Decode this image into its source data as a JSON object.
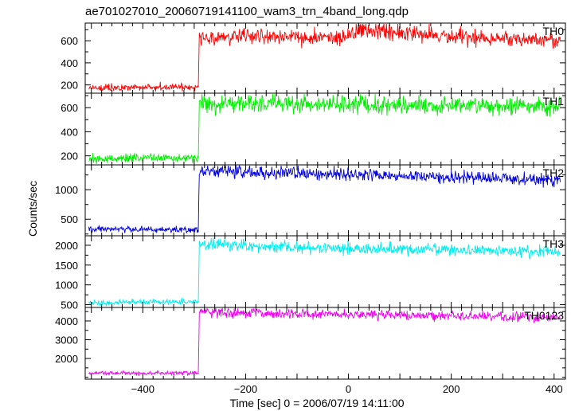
{
  "chart_data": {
    "type": "line",
    "title": "ae701027010_20060719141100_wam3_trn_4band_long.qdp",
    "xlabel": "Time [sec] 0 = 2006/07/19 14:11:00",
    "ylabel": "Counts/sec",
    "xlim": [
      -512,
      422
    ],
    "x_ticks": [
      -400,
      -200,
      0,
      200,
      400
    ],
    "x_tick_labels": [
      "−400",
      "−200",
      "0",
      "200",
      "400"
    ],
    "transition_x": -292,
    "panels": [
      {
        "label": "TH0",
        "color": "#ff0000",
        "ylim": [
          125,
          760
        ],
        "yticks": [
          200,
          400,
          600
        ],
        "x": [
          -505,
          -400,
          -300,
          -292,
          -290,
          -200,
          0,
          10,
          200,
          412
        ],
        "y": [
          175,
          178,
          182,
          185,
          620,
          635,
          640,
          700,
          630,
          610
        ]
      },
      {
        "label": "TH1",
        "color": "#00ee00",
        "ylim": [
          125,
          720
        ],
        "yticks": [
          200,
          400,
          600
        ],
        "x": [
          -505,
          -400,
          -300,
          -292,
          -290,
          -200,
          0,
          200,
          412
        ],
        "y": [
          170,
          185,
          180,
          185,
          630,
          635,
          630,
          615,
          605
        ]
      },
      {
        "label": "TH2",
        "color": "#0000dd",
        "ylim": [
          220,
          1420
        ],
        "yticks": [
          500,
          1000
        ],
        "x": [
          -505,
          -400,
          -300,
          -292,
          -290,
          -200,
          0,
          200,
          412
        ],
        "y": [
          330,
          330,
          320,
          330,
          1320,
          1300,
          1260,
          1210,
          1150
        ]
      },
      {
        "label": "TH3",
        "color": "#00eeee",
        "ylim": [
          430,
          2240
        ],
        "yticks": [
          500,
          1000,
          1500,
          2000
        ],
        "x": [
          -505,
          -400,
          -300,
          -292,
          -290,
          -200,
          0,
          200,
          412
        ],
        "y": [
          550,
          560,
          580,
          560,
          2020,
          1980,
          1920,
          1880,
          1830
        ]
      },
      {
        "label": "TH0123",
        "color": "#ee00ee",
        "ylim": [
          900,
          4720
        ],
        "yticks": [
          2000,
          3000,
          4000
        ],
        "x": [
          -505,
          -400,
          -300,
          -292,
          -290,
          -200,
          0,
          200,
          412
        ],
        "y": [
          1230,
          1220,
          1230,
          1230,
          4480,
          4420,
          4350,
          4270,
          4180
        ]
      }
    ]
  }
}
